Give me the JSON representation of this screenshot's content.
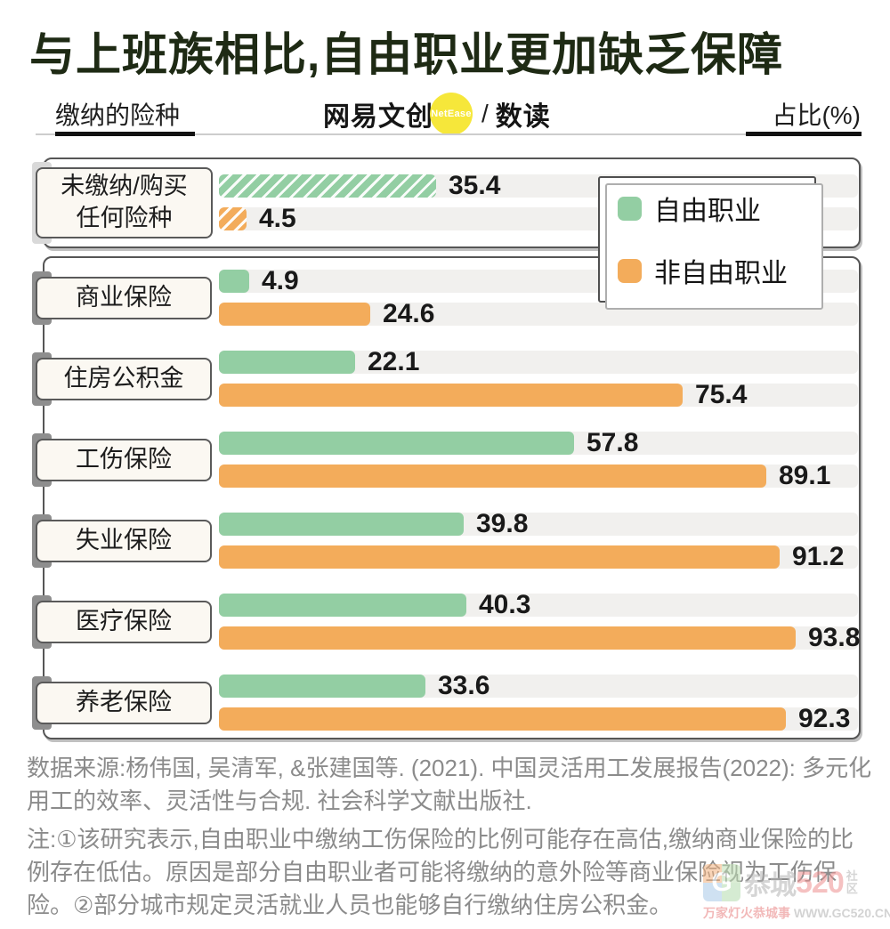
{
  "title": "与上班族相比,自由职业更加缺乏保障",
  "header": {
    "left_label": "缴纳的险种",
    "right_label": "占比(%)",
    "brand": {
      "name": "网易文创",
      "badge": "NetEase",
      "sep": "/",
      "sub": "数读"
    }
  },
  "legend": {
    "items": [
      {
        "label": "自由职业",
        "color": "#93cea3"
      },
      {
        "label": "非自由职业",
        "color": "#f3ac5b"
      }
    ]
  },
  "chart_data": {
    "type": "bar",
    "orientation": "horizontal",
    "unit": "%",
    "title": "与上班族相比,自由职业更加缺乏保障",
    "xlabel": "占比(%)",
    "ylabel": "缴纳的险种",
    "xlim": [
      0,
      104
    ],
    "grid": false,
    "legend_position": "top-right",
    "categories": [
      "未缴纳/购买任何险种",
      "商业保险",
      "住房公积金",
      "工伤保险",
      "失业保险",
      "医疗保险",
      "养老保险"
    ],
    "group1_label_lines": [
      "未缴纳/购买",
      "任何险种"
    ],
    "hatched_category_index": 0,
    "series": [
      {
        "name": "自由职业",
        "color": "#93cea3",
        "values": [
          35.4,
          4.9,
          22.1,
          57.8,
          39.8,
          40.3,
          33.6
        ]
      },
      {
        "name": "非自由职业",
        "color": "#f3ac5b",
        "values": [
          4.5,
          24.6,
          75.4,
          89.1,
          91.2,
          93.8,
          92.3
        ]
      }
    ]
  },
  "footer": {
    "source": "数据来源:杨伟国, 吴清军, &张建国等. (2021). 中国灵活用工发展报告(2022): 多元化用工的效率、灵活性与合规. 社会科学文献出版社.",
    "note": "注:①该研究表示,自由职业中缴纳工伤保险的比例可能存在高估,缴纳商业保险的比例存在低估。原因是部分自由职业者可能将缴纳的意外险等商业保险视为工伤保险。②部分城市规定灵活就业人员也能够自行缴纳住房公积金。"
  },
  "watermark": {
    "logo_letter": "G",
    "brand": "恭城",
    "number": "520",
    "side": "社区",
    "tagline": "万家灯火恭城事",
    "url": "WWW.GC520.CN"
  }
}
